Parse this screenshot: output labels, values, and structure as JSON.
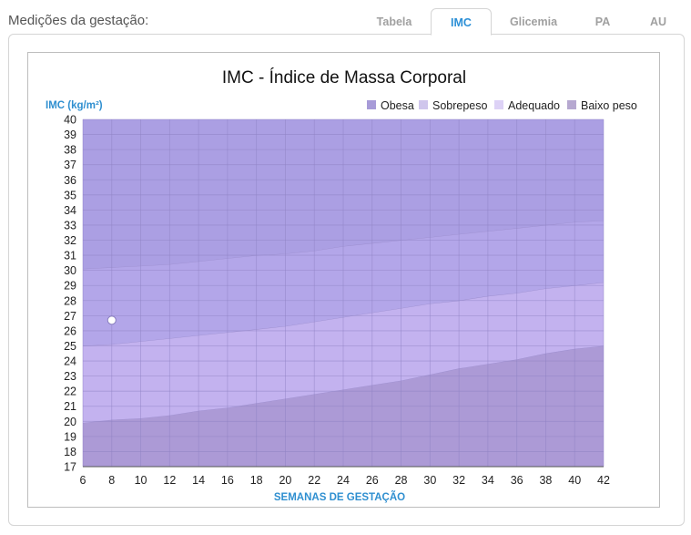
{
  "header": {
    "title": "Medições da gestação"
  },
  "tabs": [
    {
      "label": "Tabela",
      "active": false
    },
    {
      "label": "IMC",
      "active": true
    },
    {
      "label": "Glicemia",
      "active": false
    },
    {
      "label": "PA",
      "active": false
    },
    {
      "label": "AU",
      "active": false
    }
  ],
  "chart_data": {
    "type": "area",
    "title": "IMC - Índice de Massa Corporal",
    "ylabel": "IMC (kg/m²)",
    "xlabel": "SEMANAS DE GESTAÇÃO",
    "xlim": [
      6,
      42
    ],
    "ylim": [
      17,
      40
    ],
    "x_ticks": [
      6,
      8,
      10,
      12,
      14,
      16,
      18,
      20,
      22,
      24,
      26,
      28,
      30,
      32,
      34,
      36,
      38,
      40,
      42
    ],
    "y_ticks": [
      17,
      18,
      19,
      20,
      21,
      22,
      23,
      24,
      25,
      26,
      27,
      28,
      29,
      30,
      31,
      32,
      33,
      34,
      35,
      36,
      37,
      38,
      39,
      40
    ],
    "grid": true,
    "legend_position": "top-right",
    "legend": [
      {
        "label": "Obesa",
        "color": "#a79bd8"
      },
      {
        "label": "Sobrepeso",
        "color": "#cfc6ec"
      },
      {
        "label": "Adequado",
        "color": "#ddd2f6"
      },
      {
        "label": "Baixo peso",
        "color": "#b6a8d0"
      }
    ],
    "x": [
      6,
      8,
      10,
      12,
      14,
      16,
      18,
      20,
      22,
      24,
      26,
      28,
      30,
      32,
      34,
      36,
      38,
      40,
      42
    ],
    "series": [
      {
        "name": "Baixo peso",
        "color": "#ac9ad6",
        "upper": [
          19.9,
          20.1,
          20.2,
          20.4,
          20.7,
          20.9,
          21.2,
          21.5,
          21.8,
          22.1,
          22.4,
          22.7,
          23.1,
          23.5,
          23.8,
          24.1,
          24.5,
          24.8,
          25.0
        ]
      },
      {
        "name": "Adequado",
        "color": "#c3b2ef",
        "upper": [
          25.0,
          25.1,
          25.3,
          25.5,
          25.7,
          25.9,
          26.1,
          26.3,
          26.6,
          26.9,
          27.2,
          27.5,
          27.8,
          28.0,
          28.3,
          28.5,
          28.8,
          29.0,
          29.2
        ]
      },
      {
        "name": "Sobrepeso",
        "color": "#b3a6e9",
        "upper": [
          30.1,
          30.2,
          30.3,
          30.4,
          30.6,
          30.8,
          31.0,
          31.1,
          31.3,
          31.6,
          31.8,
          32.0,
          32.2,
          32.4,
          32.6,
          32.8,
          33.0,
          33.2,
          33.3
        ]
      },
      {
        "name": "Obesa",
        "color": "#ab9fe3",
        "upper": [
          40,
          40,
          40,
          40,
          40,
          40,
          40,
          40,
          40,
          40,
          40,
          40,
          40,
          40,
          40,
          40,
          40,
          40,
          40
        ]
      }
    ],
    "points": [
      {
        "x": 8,
        "y": 26.7
      }
    ]
  }
}
